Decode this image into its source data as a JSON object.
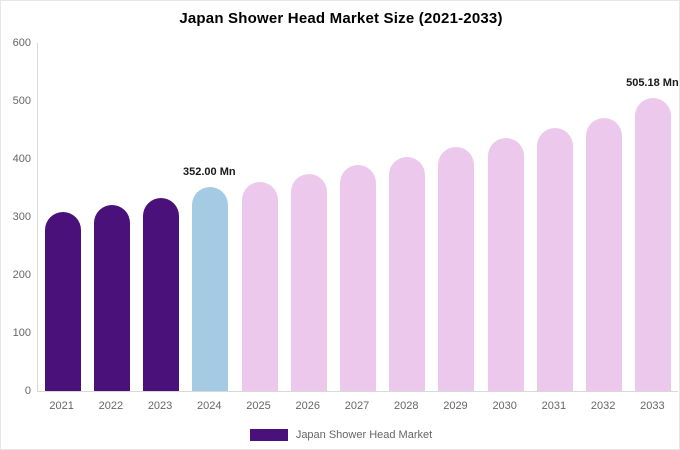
{
  "title": "Japan Shower Head Market Size (2021-2033)",
  "legend": {
    "label": "Japan Shower Head Market",
    "swatch_color": "#491179"
  },
  "colors": {
    "historical": "#491179",
    "current": "#a4cbe3",
    "forecast": "#ecc9ec",
    "axis_line": "#d9d9d9",
    "tick_text": "#666666"
  },
  "chart_data": {
    "type": "bar",
    "title": "Japan Shower Head Market Size (2021-2033)",
    "categories": [
      "2021",
      "2022",
      "2023",
      "2024",
      "2025",
      "2026",
      "2027",
      "2028",
      "2029",
      "2030",
      "2031",
      "2032",
      "2033"
    ],
    "values": [
      308,
      320,
      333,
      352,
      361,
      375,
      390,
      404,
      420,
      437,
      453,
      470,
      505.18
    ],
    "bar_colors": [
      "#491179",
      "#491179",
      "#491179",
      "#a4cbe3",
      "#ecc9ec",
      "#ecc9ec",
      "#ecc9ec",
      "#ecc9ec",
      "#ecc9ec",
      "#ecc9ec",
      "#ecc9ec",
      "#ecc9ec",
      "#ecc9ec"
    ],
    "xlabel": "",
    "ylabel": "",
    "ylim": [
      0,
      600
    ],
    "y_ticks": [
      0,
      100,
      200,
      300,
      400,
      500,
      600
    ],
    "grid": false,
    "legend_position": "bottom",
    "legend_entries": [
      "Japan Shower Head Market"
    ],
    "annotations": [
      {
        "category": "2024",
        "text": "352.00 Mn"
      },
      {
        "category": "2033",
        "text": "505.18 Mn"
      }
    ]
  }
}
